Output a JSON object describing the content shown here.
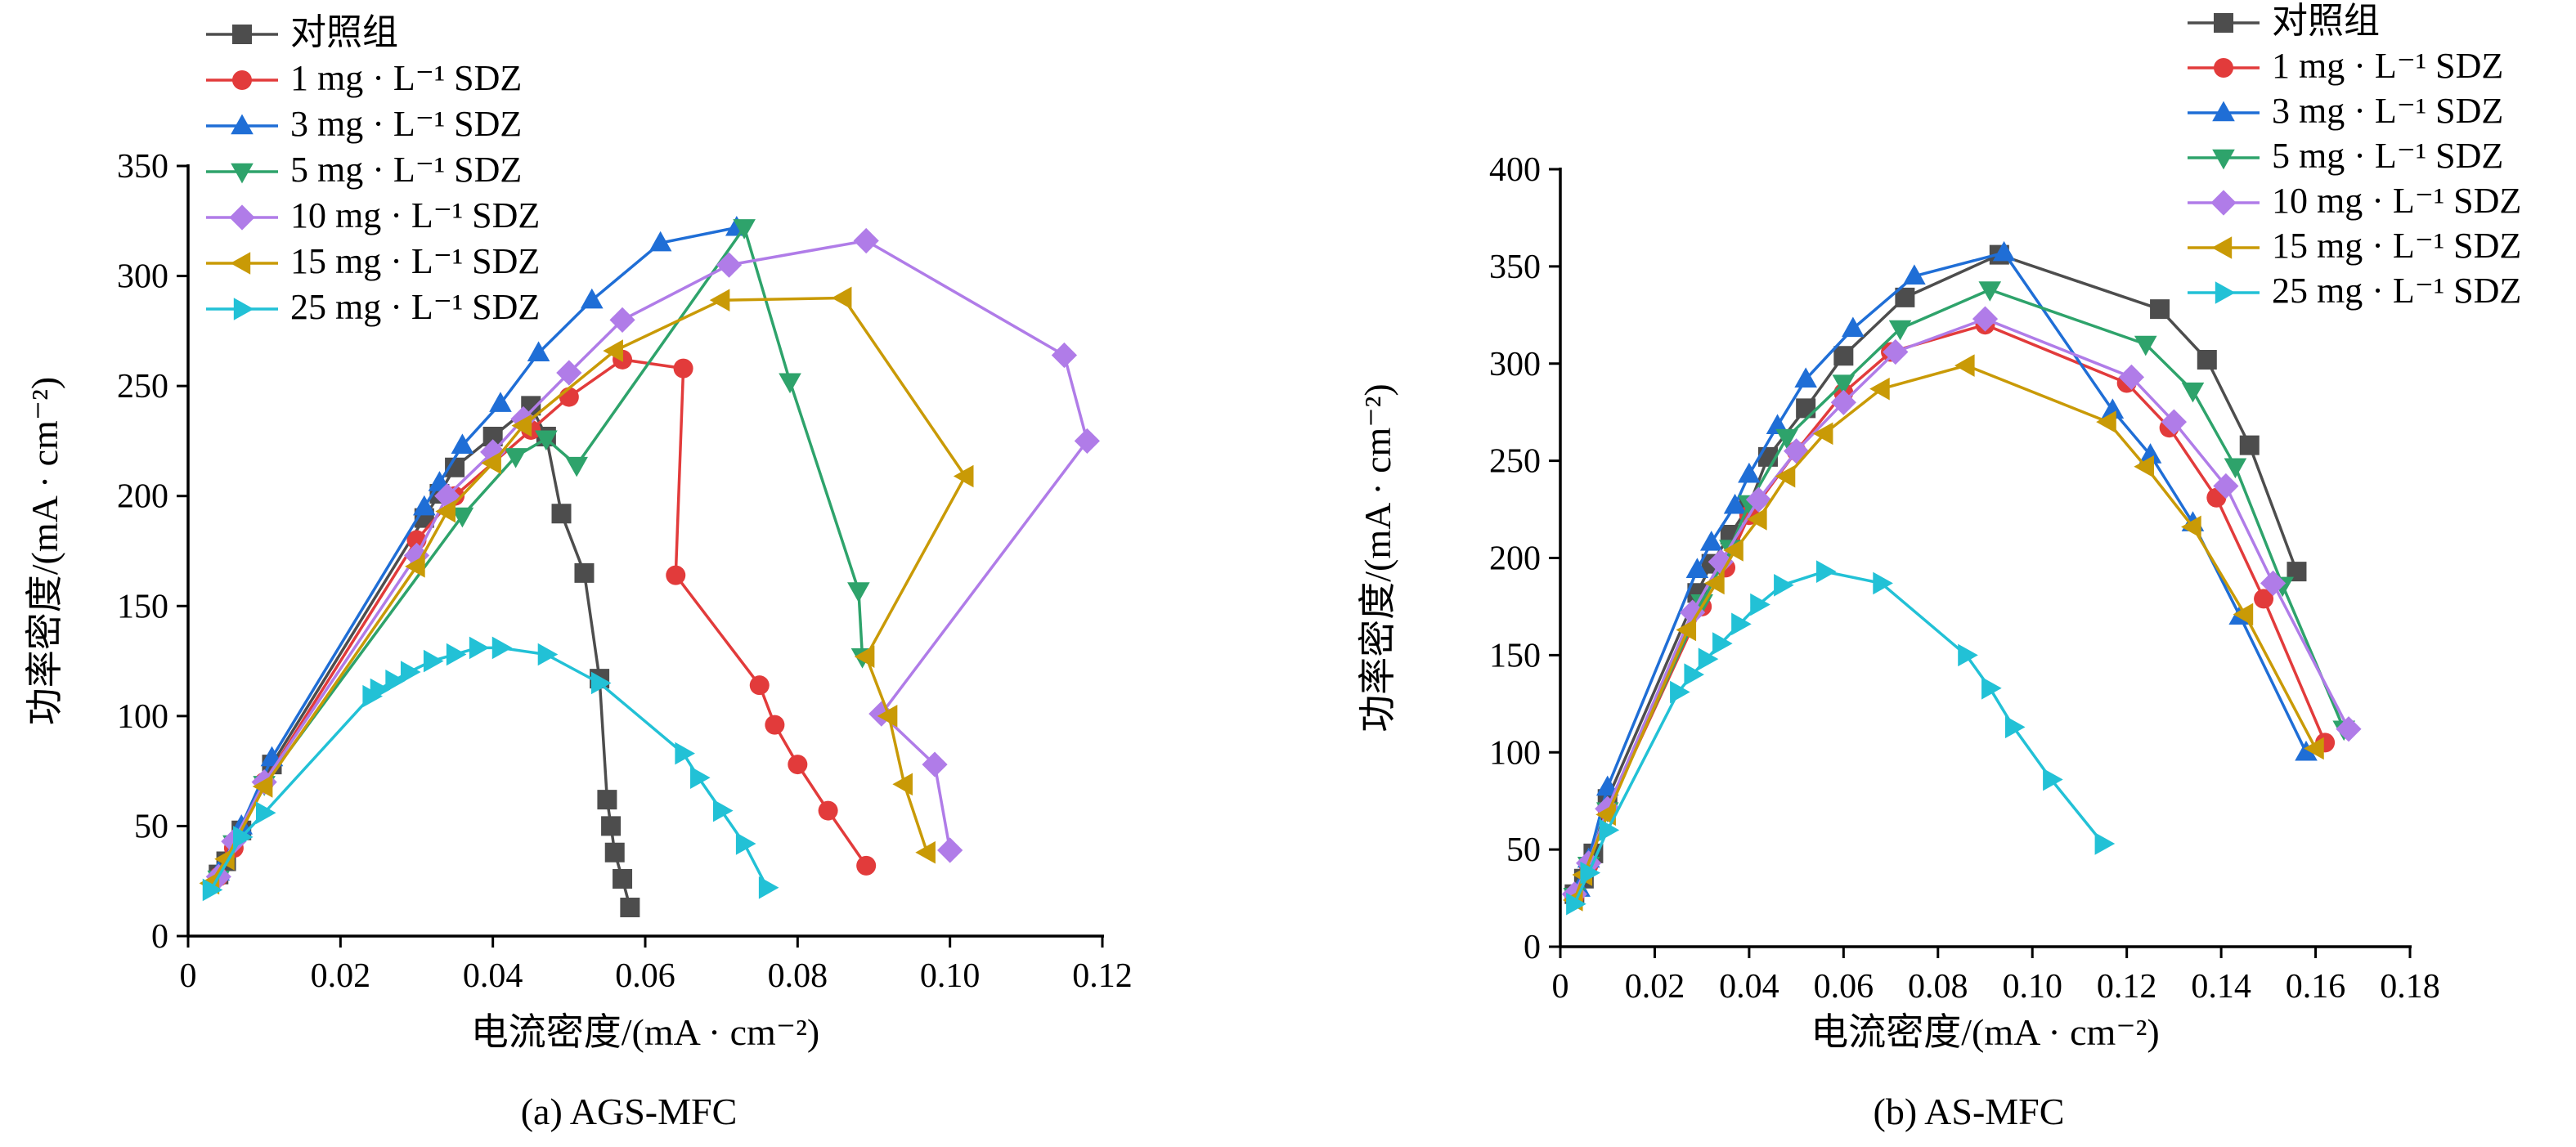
{
  "chart_data": [
    {
      "type": "line",
      "caption": "(a) AGS-MFC",
      "xlabel": "电流密度/(mA · cm⁻²)",
      "ylabel": "功率密度/(mA · cm⁻²)",
      "xlim": [
        0,
        0.12
      ],
      "ylim": [
        0,
        350
      ],
      "xticks": [
        0,
        0.02,
        0.04,
        0.06,
        0.08,
        0.1,
        0.12
      ],
      "xtick_labels": [
        "0",
        "0.02",
        "0.04",
        "0.06",
        "0.08",
        "0.10",
        "0.12"
      ],
      "yticks": [
        0,
        50,
        100,
        150,
        200,
        250,
        300,
        350
      ],
      "ytick_labels": [
        "0",
        "50",
        "100",
        "150",
        "200",
        "250",
        "300",
        "350"
      ],
      "legend_position": "top-left",
      "series": [
        {
          "name": "对照组",
          "color": "#4d4d4d",
          "marker": "square",
          "points": [
            [
              0.004,
              28
            ],
            [
              0.005,
              34
            ],
            [
              0.007,
              48
            ],
            [
              0.011,
              78
            ],
            [
              0.031,
              190
            ],
            [
              0.033,
              201
            ],
            [
              0.035,
              213
            ],
            [
              0.04,
              227
            ],
            [
              0.045,
              241
            ],
            [
              0.047,
              227
            ],
            [
              0.049,
              192
            ],
            [
              0.052,
              165
            ],
            [
              0.054,
              117
            ],
            [
              0.055,
              62
            ],
            [
              0.0555,
              50
            ],
            [
              0.056,
              38
            ],
            [
              0.057,
              26
            ],
            [
              0.058,
              13
            ]
          ]
        },
        {
          "name": "1 mg · L⁻¹ SDZ",
          "color": "#e23b3b",
          "marker": "circle",
          "points": [
            [
              0.004,
              27
            ],
            [
              0.006,
              40
            ],
            [
              0.01,
              70
            ],
            [
              0.03,
              180
            ],
            [
              0.035,
              200
            ],
            [
              0.045,
              230
            ],
            [
              0.05,
              245
            ],
            [
              0.057,
              262
            ],
            [
              0.065,
              258
            ],
            [
              0.064,
              164
            ],
            [
              0.075,
              114
            ],
            [
              0.077,
              96
            ],
            [
              0.08,
              78
            ],
            [
              0.084,
              57
            ],
            [
              0.089,
              32
            ]
          ]
        },
        {
          "name": "3 mg · L⁻¹ SDZ",
          "color": "#1f6ed6",
          "marker": "triangle-up",
          "points": [
            [
              0.004,
              29
            ],
            [
              0.007,
              50
            ],
            [
              0.011,
              81
            ],
            [
              0.031,
              195
            ],
            [
              0.033,
              206
            ],
            [
              0.036,
              223
            ],
            [
              0.041,
              242
            ],
            [
              0.046,
              265
            ],
            [
              0.053,
              289
            ],
            [
              0.062,
              315
            ],
            [
              0.072,
              322
            ]
          ]
        },
        {
          "name": "5 mg · L⁻¹ SDZ",
          "color": "#2ea36b",
          "marker": "triangle-down",
          "points": [
            [
              0.004,
              26
            ],
            [
              0.006,
              42
            ],
            [
              0.01,
              69
            ],
            [
              0.036,
              191
            ],
            [
              0.043,
              218
            ],
            [
              0.047,
              226
            ],
            [
              0.051,
              214
            ],
            [
              0.073,
              322
            ],
            [
              0.079,
              252
            ],
            [
              0.088,
              157
            ],
            [
              0.0885,
              127
            ]
          ]
        },
        {
          "name": "10 mg · L⁻¹ SDZ",
          "color": "#b07ce8",
          "marker": "diamond",
          "points": [
            [
              0.004,
              27
            ],
            [
              0.006,
              43
            ],
            [
              0.01,
              70
            ],
            [
              0.03,
              173
            ],
            [
              0.034,
              200
            ],
            [
              0.04,
              220
            ],
            [
              0.044,
              235
            ],
            [
              0.05,
              256
            ],
            [
              0.057,
              280
            ],
            [
              0.071,
              305
            ],
            [
              0.089,
              316
            ],
            [
              0.115,
              264
            ],
            [
              0.118,
              225
            ],
            [
              0.091,
              101
            ],
            [
              0.098,
              78
            ],
            [
              0.1,
              39
            ]
          ]
        },
        {
          "name": "15 mg · L⁻¹ SDZ",
          "color": "#c99a06",
          "marker": "triangle-left",
          "points": [
            [
              0.003,
              24
            ],
            [
              0.005,
              35
            ],
            [
              0.01,
              68
            ],
            [
              0.03,
              168
            ],
            [
              0.034,
              193
            ],
            [
              0.04,
              215
            ],
            [
              0.044,
              232
            ],
            [
              0.056,
              266
            ],
            [
              0.07,
              289
            ],
            [
              0.086,
              290
            ],
            [
              0.102,
              209
            ],
            [
              0.089,
              127
            ],
            [
              0.092,
              100
            ],
            [
              0.094,
              69
            ],
            [
              0.097,
              38
            ]
          ]
        },
        {
          "name": "25 mg · L⁻¹ SDZ",
          "color": "#22c1d6",
          "marker": "triangle-right",
          "points": [
            [
              0.003,
              21
            ],
            [
              0.007,
              45
            ],
            [
              0.01,
              56
            ],
            [
              0.024,
              109
            ],
            [
              0.025,
              112
            ],
            [
              0.027,
              116
            ],
            [
              0.029,
              120
            ],
            [
              0.032,
              125
            ],
            [
              0.035,
              128
            ],
            [
              0.038,
              131
            ],
            [
              0.041,
              131
            ],
            [
              0.047,
              128
            ],
            [
              0.054,
              115
            ],
            [
              0.065,
              83
            ],
            [
              0.067,
              72
            ],
            [
              0.07,
              57
            ],
            [
              0.073,
              42
            ],
            [
              0.076,
              22
            ]
          ]
        }
      ]
    },
    {
      "type": "line",
      "caption": "(b) AS-MFC",
      "xlabel": "电流密度/(mA · cm⁻²)",
      "ylabel": "功率密度/(mA · cm⁻²)",
      "xlim": [
        0,
        0.18
      ],
      "ylim": [
        0,
        400
      ],
      "xticks": [
        0,
        0.02,
        0.04,
        0.06,
        0.08,
        0.1,
        0.12,
        0.14,
        0.16,
        0.18
      ],
      "xtick_labels": [
        "0",
        "0.02",
        "0.04",
        "0.06",
        "0.08",
        "0.10",
        "0.12",
        "0.14",
        "0.16",
        "0.18"
      ],
      "yticks": [
        0,
        50,
        100,
        150,
        200,
        250,
        300,
        350,
        400
      ],
      "ytick_labels": [
        "0",
        "50",
        "100",
        "150",
        "200",
        "250",
        "300",
        "350",
        "400"
      ],
      "legend_position": "top-right",
      "series": [
        {
          "name": "对照组",
          "color": "#4d4d4d",
          "marker": "square",
          "points": [
            [
              0.003,
              27
            ],
            [
              0.005,
              35
            ],
            [
              0.007,
              48
            ],
            [
              0.01,
              76
            ],
            [
              0.029,
              182
            ],
            [
              0.032,
              197
            ],
            [
              0.036,
              212
            ],
            [
              0.04,
              227
            ],
            [
              0.044,
              252
            ],
            [
              0.052,
              277
            ],
            [
              0.06,
              304
            ],
            [
              0.073,
              334
            ],
            [
              0.093,
              356
            ],
            [
              0.127,
              328
            ],
            [
              0.137,
              302
            ],
            [
              0.146,
              258
            ],
            [
              0.156,
              193
            ]
          ]
        },
        {
          "name": "1 mg · L⁻¹ SDZ",
          "color": "#e23b3b",
          "marker": "circle",
          "points": [
            [
              0.003,
              26
            ],
            [
              0.006,
              42
            ],
            [
              0.01,
              70
            ],
            [
              0.03,
              175
            ],
            [
              0.035,
              195
            ],
            [
              0.04,
              222
            ],
            [
              0.05,
              255
            ],
            [
              0.06,
              285
            ],
            [
              0.07,
              306
            ],
            [
              0.09,
              320
            ],
            [
              0.12,
              290
            ],
            [
              0.129,
              267
            ],
            [
              0.139,
              231
            ],
            [
              0.149,
              179
            ],
            [
              0.162,
              105
            ]
          ]
        },
        {
          "name": "3 mg · L⁻¹ SDZ",
          "color": "#1f6ed6",
          "marker": "triangle-up",
          "points": [
            [
              0.004,
              30
            ],
            [
              0.006,
              45
            ],
            [
              0.01,
              82
            ],
            [
              0.029,
              194
            ],
            [
              0.032,
              208
            ],
            [
              0.037,
              227
            ],
            [
              0.04,
              243
            ],
            [
              0.046,
              268
            ],
            [
              0.052,
              292
            ],
            [
              0.062,
              318
            ],
            [
              0.075,
              345
            ],
            [
              0.094,
              357
            ],
            [
              0.117,
              276
            ],
            [
              0.125,
              253
            ],
            [
              0.134,
              218
            ],
            [
              0.144,
              170
            ],
            [
              0.158,
              100
            ]
          ]
        },
        {
          "name": "5 mg · L⁻¹ SDZ",
          "color": "#2ea36b",
          "marker": "triangle-down",
          "points": [
            [
              0.003,
              26
            ],
            [
              0.006,
              42
            ],
            [
              0.01,
              70
            ],
            [
              0.03,
              177
            ],
            [
              0.036,
              205
            ],
            [
              0.04,
              228
            ],
            [
              0.048,
              262
            ],
            [
              0.06,
              290
            ],
            [
              0.072,
              318
            ],
            [
              0.091,
              338
            ],
            [
              0.124,
              310
            ],
            [
              0.134,
              286
            ],
            [
              0.143,
              247
            ],
            [
              0.153,
              186
            ],
            [
              0.166,
              112
            ]
          ]
        },
        {
          "name": "10 mg · L⁻¹ SDZ",
          "color": "#b07ce8",
          "marker": "diamond",
          "points": [
            [
              0.003,
              27
            ],
            [
              0.006,
              43
            ],
            [
              0.01,
              71
            ],
            [
              0.028,
              172
            ],
            [
              0.034,
              198
            ],
            [
              0.042,
              230
            ],
            [
              0.05,
              255
            ],
            [
              0.06,
              280
            ],
            [
              0.071,
              306
            ],
            [
              0.09,
              323
            ],
            [
              0.121,
              293
            ],
            [
              0.13,
              270
            ],
            [
              0.141,
              237
            ],
            [
              0.151,
              187
            ],
            [
              0.167,
              112
            ]
          ]
        },
        {
          "name": "15 mg · L⁻¹ SDZ",
          "color": "#c99a06",
          "marker": "triangle-left",
          "points": [
            [
              0.003,
              24
            ],
            [
              0.005,
              37
            ],
            [
              0.01,
              68
            ],
            [
              0.027,
              163
            ],
            [
              0.033,
              187
            ],
            [
              0.037,
              204
            ],
            [
              0.042,
              220
            ],
            [
              0.048,
              242
            ],
            [
              0.056,
              264
            ],
            [
              0.068,
              287
            ],
            [
              0.086,
              299
            ],
            [
              0.116,
              270
            ],
            [
              0.124,
              247
            ],
            [
              0.134,
              216
            ],
            [
              0.145,
              171
            ],
            [
              0.16,
              102
            ]
          ]
        },
        {
          "name": "25 mg · L⁻¹ SDZ",
          "color": "#22c1d6",
          "marker": "triangle-right",
          "points": [
            [
              0.003,
              22
            ],
            [
              0.006,
              38
            ],
            [
              0.01,
              60
            ],
            [
              0.025,
              131
            ],
            [
              0.028,
              140
            ],
            [
              0.031,
              148
            ],
            [
              0.034,
              156
            ],
            [
              0.038,
              166
            ],
            [
              0.042,
              176
            ],
            [
              0.047,
              186
            ],
            [
              0.056,
              193
            ],
            [
              0.068,
              187
            ],
            [
              0.086,
              150
            ],
            [
              0.091,
              133
            ],
            [
              0.096,
              113
            ],
            [
              0.104,
              86
            ],
            [
              0.115,
              53
            ]
          ]
        }
      ]
    }
  ]
}
